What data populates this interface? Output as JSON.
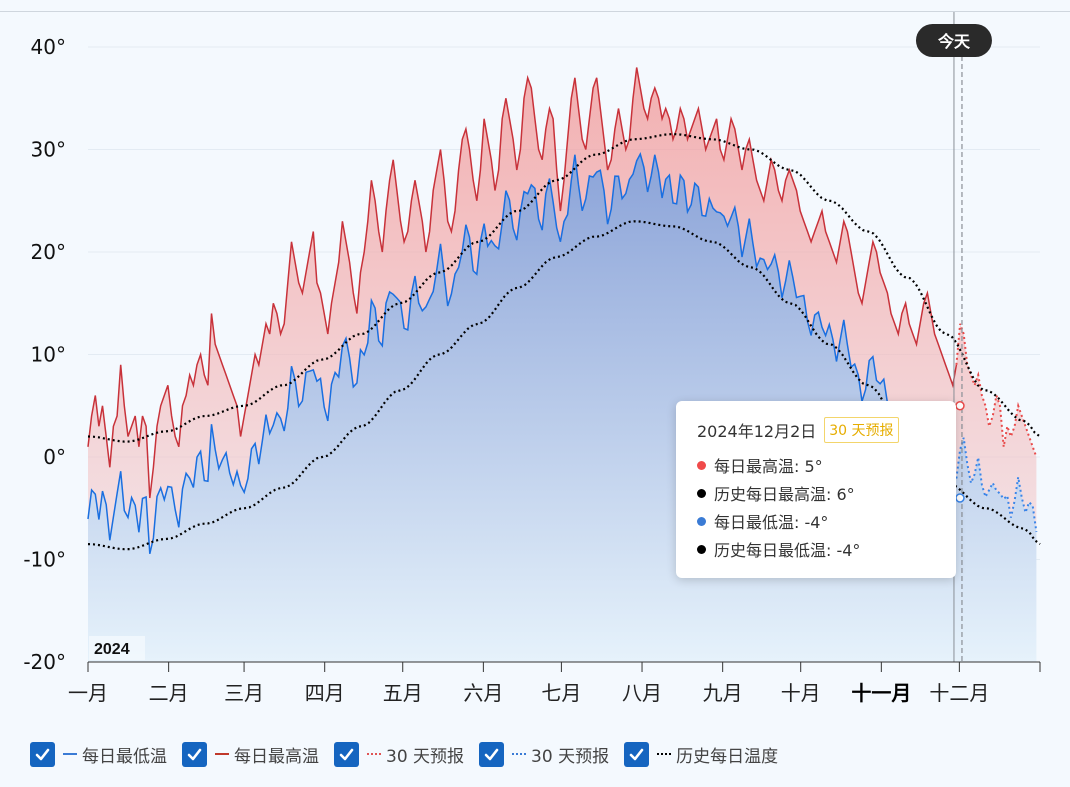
{
  "chart_data": {
    "type": "area",
    "title": "",
    "year_label": "2024",
    "today_label": "今天",
    "ylim": [
      -20,
      40
    ],
    "y_ticks": [
      40,
      30,
      20,
      10,
      0,
      -10,
      -20
    ],
    "y_tick_labels": [
      "40°",
      "30°",
      "20°",
      "10°",
      "0°",
      "-10°",
      "-20°"
    ],
    "months": [
      "一月",
      "二月",
      "三月",
      "四月",
      "五月",
      "六月",
      "七月",
      "八月",
      "九月",
      "十月",
      "十一月",
      "十二月"
    ],
    "highlighted_month": "十一月",
    "today_day_of_year": 336,
    "forecast_start_day_of_year": 333,
    "historical_high_anchors": [
      [
        0,
        2
      ],
      [
        15,
        1.5
      ],
      [
        30,
        2.5
      ],
      [
        45,
        4
      ],
      [
        60,
        5
      ],
      [
        75,
        7
      ],
      [
        90,
        9.5
      ],
      [
        105,
        12
      ],
      [
        120,
        15
      ],
      [
        135,
        18
      ],
      [
        150,
        21
      ],
      [
        165,
        24
      ],
      [
        180,
        27
      ],
      [
        195,
        29.5
      ],
      [
        210,
        31
      ],
      [
        225,
        31.5
      ],
      [
        240,
        31
      ],
      [
        255,
        30
      ],
      [
        270,
        28
      ],
      [
        285,
        25
      ],
      [
        300,
        22
      ],
      [
        315,
        17.5
      ],
      [
        330,
        12
      ],
      [
        345,
        6.5
      ],
      [
        360,
        3.5
      ],
      [
        366,
        2
      ]
    ],
    "historical_low_anchors": [
      [
        0,
        -8.5
      ],
      [
        15,
        -9
      ],
      [
        30,
        -8
      ],
      [
        45,
        -6.5
      ],
      [
        60,
        -5
      ],
      [
        75,
        -3
      ],
      [
        90,
        0
      ],
      [
        105,
        3
      ],
      [
        120,
        6.5
      ],
      [
        135,
        10
      ],
      [
        150,
        13
      ],
      [
        165,
        16.5
      ],
      [
        180,
        19.5
      ],
      [
        195,
        21.5
      ],
      [
        210,
        23
      ],
      [
        225,
        22.5
      ],
      [
        240,
        21
      ],
      [
        255,
        18.5
      ],
      [
        270,
        15
      ],
      [
        285,
        11
      ],
      [
        300,
        7
      ],
      [
        315,
        2
      ],
      [
        330,
        -2.5
      ],
      [
        345,
        -5
      ],
      [
        360,
        -7
      ],
      [
        366,
        -8.5
      ]
    ],
    "series": [
      {
        "name": "每日最高温",
        "values": [
          1,
          4,
          6,
          3,
          5,
          2,
          -1,
          3,
          4,
          9,
          5,
          2,
          3,
          4,
          1,
          4,
          3,
          -4,
          -1,
          3,
          5,
          6,
          7,
          4,
          2,
          1,
          5,
          6,
          8,
          7,
          9,
          10,
          8,
          7,
          14,
          11,
          10,
          9,
          8,
          7,
          6,
          5,
          2,
          4,
          6,
          8,
          10,
          9,
          11,
          13,
          12,
          15,
          14,
          12,
          13,
          17,
          21,
          19,
          17,
          16,
          18,
          20,
          22,
          17,
          16,
          14,
          12,
          15,
          17,
          19,
          23,
          21,
          19,
          16,
          14,
          18,
          20,
          23,
          27,
          25,
          22,
          20,
          24,
          27,
          29,
          26,
          23,
          21,
          22,
          25,
          27,
          25,
          23,
          20,
          22,
          26,
          28,
          30,
          27,
          23,
          22,
          24,
          28,
          31,
          32,
          30,
          27,
          25,
          28,
          33,
          31,
          29,
          26,
          28,
          33,
          35,
          33,
          31,
          28,
          30,
          35,
          37,
          36,
          33,
          30,
          29,
          32,
          34,
          33,
          28,
          24,
          27,
          31,
          35,
          37,
          34,
          31,
          30,
          33,
          36,
          37,
          34,
          31,
          28,
          29,
          32,
          34,
          32,
          30,
          31,
          35,
          38,
          36,
          34,
          33,
          35,
          36,
          35,
          33,
          34,
          33,
          31,
          32,
          34,
          33,
          31,
          32,
          33,
          34,
          32,
          30,
          31,
          32,
          33,
          30,
          29,
          31,
          33,
          32,
          30,
          28,
          30,
          31,
          29,
          27,
          26,
          25,
          27,
          29,
          28,
          26,
          25,
          27,
          28,
          27,
          26,
          24,
          23,
          22,
          21,
          22,
          23,
          24,
          22,
          21,
          20,
          19,
          21,
          23,
          22,
          20,
          18,
          16,
          15,
          17,
          19,
          21,
          20,
          18,
          17,
          16,
          14,
          13,
          12,
          14,
          15,
          13,
          12,
          11,
          13,
          15,
          16,
          14,
          12,
          11,
          10,
          9,
          8,
          7,
          9,
          13,
          12,
          9,
          8,
          7,
          8,
          6,
          5,
          3,
          4,
          6,
          5,
          1,
          3,
          2,
          3,
          5,
          4,
          3,
          2,
          1,
          0
        ],
        "_note": ""
      },
      {
        "name": "每日最低温",
        "values": []
      },
      {
        "name": "历史每日温度",
        "values": []
      }
    ],
    "legend": [
      "每日最低温",
      "每日最高温",
      "30 天预报",
      "30 天预报",
      "历史每日温度"
    ],
    "grid": true,
    "legend_position": "bottom"
  },
  "tooltip": {
    "date": "2024年12月2日",
    "badge": "30 天预报",
    "rows": [
      {
        "label": "每日最高温: 5°",
        "color": "#f04a4a"
      },
      {
        "label": "历史每日最高温: 6°",
        "color": "#000000"
      },
      {
        "label": "每日最低温: -4°",
        "color": "#3a7bd5"
      },
      {
        "label": "历史每日最低温: -4°",
        "color": "#000000"
      }
    ]
  },
  "legend_items": [
    {
      "label": "每日最低温",
      "swatch": "solid-blue"
    },
    {
      "label": "每日最高温",
      "swatch": "solid-red"
    },
    {
      "label": "30 天预报",
      "swatch": "dot-red"
    },
    {
      "label": "30 天预报",
      "swatch": "dot-blue"
    },
    {
      "label": "历史每日温度",
      "swatch": "dot-black"
    }
  ],
  "colors": {
    "high_line": "#c8323a",
    "low_line": "#1a6fe0",
    "forecast_high": "#e84a4a",
    "forecast_low": "#3a85e8",
    "checkbox": "#1565c0"
  }
}
